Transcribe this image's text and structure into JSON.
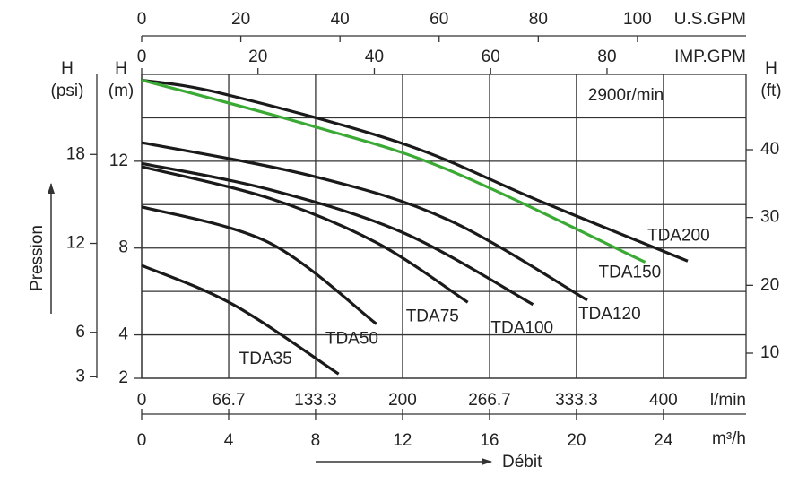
{
  "chart_data": {
    "type": "line",
    "annotation": "2900r/min",
    "x_title": "Débit",
    "y_title": "Pression",
    "x_label": "l/min",
    "xlim": [
      0,
      463.3
    ],
    "xticks": [
      0,
      66.7,
      133.3,
      200,
      266.7,
      333.3,
      400
    ],
    "y_symbol": "H",
    "y_unit": "(m)",
    "ylim": [
      2,
      16
    ],
    "yticks": [
      2,
      4,
      8,
      12
    ],
    "minor_yticks": [
      6,
      10,
      14
    ],
    "grid": true,
    "extra_axes": [
      {
        "side": "bottom",
        "label": "m³/h",
        "lim": [
          0,
          27.8
        ],
        "ticks": [
          0,
          4,
          8,
          12,
          16,
          20,
          24
        ]
      },
      {
        "side": "top",
        "label": "U.S.GPM",
        "lim": [
          0,
          121.9
        ],
        "ticks": [
          0,
          20,
          40,
          60,
          80,
          100
        ]
      },
      {
        "side": "top",
        "label": "IMP.GPM",
        "lim": [
          0,
          103.9
        ],
        "ticks": [
          0,
          20,
          40,
          60,
          80
        ]
      },
      {
        "side": "left",
        "symbol": "H",
        "unit": "(psi)",
        "lim": [
          2.9,
          23.4
        ],
        "ticks": [
          3,
          6,
          12,
          18
        ]
      },
      {
        "side": "right",
        "symbol": "H",
        "unit": "(ft)",
        "lim": [
          6.3,
          51.1
        ],
        "ticks": [
          10,
          20,
          30,
          40
        ]
      }
    ],
    "series": [
      {
        "name": "TDA200",
        "color": "#1a1a1a",
        "x": [
          0,
          63,
          200.7,
          303.8,
          418.6
        ],
        "values": [
          15.74,
          15.1,
          12.8,
          10.2,
          7.4
        ]
      },
      {
        "name": "TDA150",
        "color": "#3aaa35",
        "x": [
          0,
          132,
          235,
          386
        ],
        "values": [
          15.74,
          13.6,
          11.6,
          7.35
        ]
      },
      {
        "name": "TDA120",
        "color": "#1a1a1a",
        "x": [
          0,
          132,
          235,
          341.6
        ],
        "values": [
          12.86,
          11.3,
          9.3,
          5.6
        ]
      },
      {
        "name": "TDA100",
        "color": "#1a1a1a",
        "x": [
          0,
          97.6,
          200.7,
          300
        ],
        "values": [
          11.9,
          10.7,
          8.7,
          5.4
        ]
      },
      {
        "name": "TDA75",
        "color": "#1a1a1a",
        "x": [
          0,
          97.6,
          180,
          250
        ],
        "values": [
          11.75,
          10.3,
          8.25,
          5.5
        ]
      },
      {
        "name": "TDA50",
        "color": "#1a1a1a",
        "x": [
          0,
          97.6,
          180
        ],
        "values": [
          9.9,
          8.25,
          4.5
        ]
      },
      {
        "name": "TDA35",
        "color": "#1a1a1a",
        "x": [
          0,
          70,
          151
        ],
        "values": [
          7.2,
          5.4,
          2.2
        ]
      }
    ]
  }
}
